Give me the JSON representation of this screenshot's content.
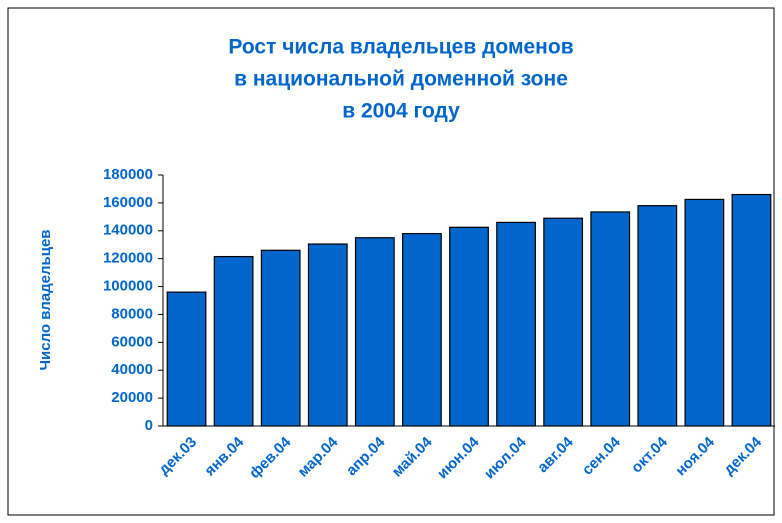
{
  "chart_data": {
    "type": "bar",
    "title": [
      "Рост числа владельцев доменов",
      "в национальной доменной зоне",
      "в 2004 году"
    ],
    "y_label": "Число владельцев",
    "categories": [
      "дек.03",
      "янв.04",
      "фев.04",
      "мар.04",
      "апр.04",
      "май.04",
      "июн.04",
      "июл.04",
      "авг.04",
      "сен.04",
      "окт.04",
      "ноя.04",
      "дек.04"
    ],
    "values": [
      96000,
      121500,
      126000,
      130500,
      135000,
      138000,
      142500,
      146000,
      149000,
      153500,
      158000,
      162500,
      166000
    ],
    "color": "#0066cc",
    "ylim": [
      0,
      180000
    ],
    "yticks": [
      0,
      20000,
      40000,
      60000,
      80000,
      100000,
      120000,
      140000,
      160000,
      180000
    ],
    "grid": false
  }
}
